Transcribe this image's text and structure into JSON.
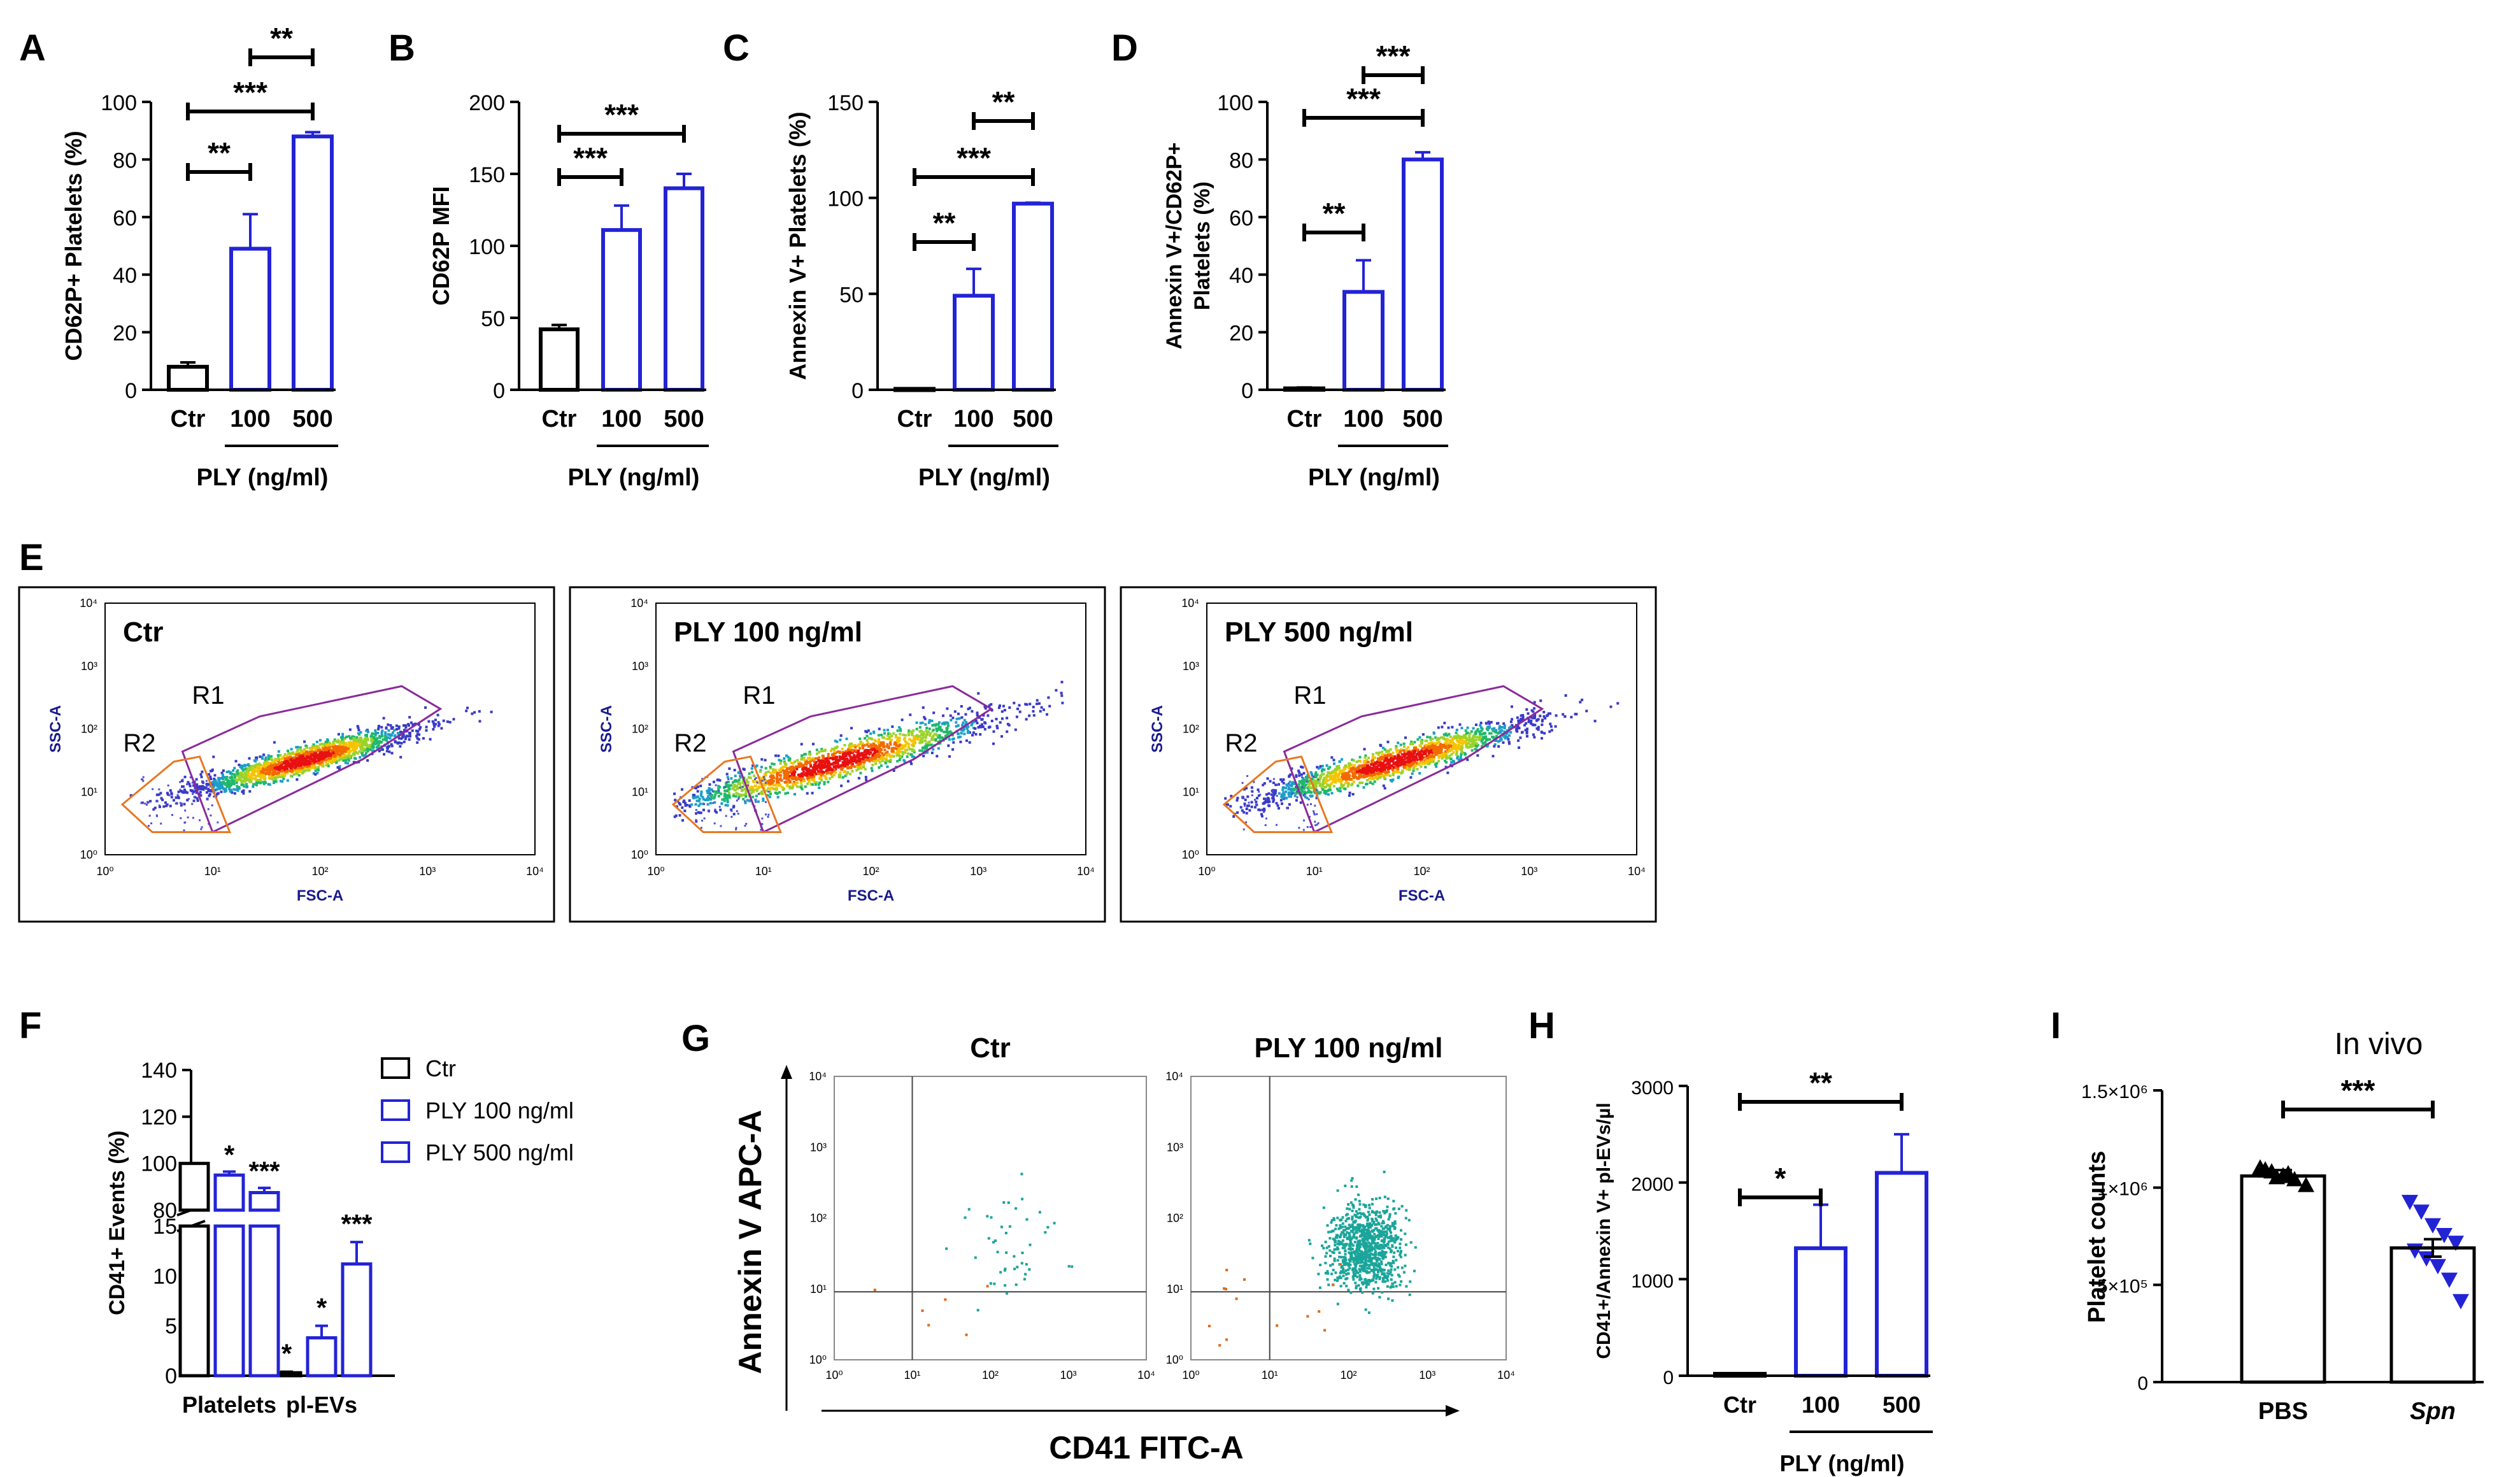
{
  "figure": {
    "colors": {
      "black": "#000000",
      "blue": "#2323d6",
      "purple": "#8a2a9a",
      "orange": "#e87722",
      "teal": "#1aa59a",
      "dot_orange": "#e06a1a"
    },
    "panel_letters": [
      "A",
      "B",
      "C",
      "D",
      "E",
      "F",
      "G",
      "H",
      "I"
    ]
  },
  "chart_data": [
    {
      "id": "A",
      "type": "bar",
      "categories": [
        "Ctr",
        "100",
        "500"
      ],
      "values": [
        8,
        49,
        88
      ],
      "errors": [
        1.5,
        12,
        1.5
      ],
      "ylabel": "CD62P+ Platelets (%)",
      "xgroup_label": "PLY (ng/ml)",
      "ylim": [
        0,
        100
      ],
      "yticks": [
        "0",
        "20",
        "40",
        "60",
        "80",
        "100"
      ],
      "sig": [
        {
          "from": 0,
          "to": 1,
          "label": "**"
        },
        {
          "from": 0,
          "to": 2,
          "label": "***"
        },
        {
          "from": 1,
          "to": 2,
          "label": "**"
        }
      ]
    },
    {
      "id": "B",
      "type": "bar",
      "categories": [
        "Ctr",
        "100",
        "500"
      ],
      "values": [
        42,
        111,
        140
      ],
      "errors": [
        3,
        17,
        10
      ],
      "ylabel": "CD62P MFI",
      "xgroup_label": "PLY (ng/ml)",
      "ylim": [
        0,
        200
      ],
      "yticks": [
        "0",
        "50",
        "100",
        "150",
        "200"
      ],
      "sig": [
        {
          "from": 0,
          "to": 1,
          "label": "***"
        },
        {
          "from": 0,
          "to": 2,
          "label": "***"
        }
      ]
    },
    {
      "id": "C",
      "type": "bar",
      "categories": [
        "Ctr",
        "100",
        "500"
      ],
      "values": [
        0.5,
        49,
        97
      ],
      "errors": [
        0.3,
        14,
        0.5
      ],
      "ylabel": "Annexin V+ Platelets (%)",
      "xgroup_label": "PLY (ng/ml)",
      "ylim": [
        0,
        150
      ],
      "yticks": [
        "0",
        "50",
        "100",
        "150"
      ],
      "sig": [
        {
          "from": 0,
          "to": 1,
          "label": "**"
        },
        {
          "from": 0,
          "to": 2,
          "label": "***"
        },
        {
          "from": 1,
          "to": 2,
          "label": "**"
        }
      ]
    },
    {
      "id": "D",
      "type": "bar",
      "categories": [
        "Ctr",
        "100",
        "500"
      ],
      "values": [
        0.5,
        34,
        80
      ],
      "errors": [
        0.3,
        11,
        2.5
      ],
      "ylabel": "Annexin V+/CD62P+ Platelets (%)",
      "ylabel_lines": [
        "Annexin V+/CD62P+",
        "Platelets (%)"
      ],
      "xgroup_label": "PLY (ng/ml)",
      "ylim": [
        0,
        100
      ],
      "yticks": [
        "0",
        "20",
        "40",
        "60",
        "80",
        "100"
      ],
      "sig": [
        {
          "from": 0,
          "to": 1,
          "label": "**"
        },
        {
          "from": 0,
          "to": 2,
          "label": "***"
        },
        {
          "from": 1,
          "to": 2,
          "label": "***"
        }
      ]
    },
    {
      "id": "E",
      "type": "scatter",
      "panels": [
        {
          "title": "Ctr",
          "xlabel": "FSC-A",
          "ylabel": "SSC-A",
          "gates": [
            "R1",
            "R2"
          ],
          "density_shift": 0
        },
        {
          "title": "PLY 100 ng/ml",
          "xlabel": "FSC-A",
          "ylabel": "SSC-A",
          "gates": [
            "R1",
            "R2"
          ],
          "density_shift": 1
        },
        {
          "title": "PLY 500 ng/ml",
          "xlabel": "FSC-A",
          "ylabel": "SSC-A",
          "gates": [
            "R1",
            "R2"
          ],
          "density_shift": 0.5
        }
      ],
      "ticks": [
        "10⁰",
        "10¹",
        "10²",
        "10³",
        "10⁴"
      ]
    },
    {
      "id": "F",
      "type": "bar",
      "ylabel": "CD41+ Events (%)",
      "groups": [
        "Platelets",
        "pl-EVs"
      ],
      "series": [
        {
          "name": "Ctr",
          "values": [
            100,
            0.3
          ],
          "errors": [
            0,
            0.1
          ]
        },
        {
          "name": "PLY 100 ng/ml",
          "values": [
            95,
            3.8
          ],
          "errors": [
            1.5,
            1.2
          ]
        },
        {
          "name": "PLY 500 ng/ml",
          "values": [
            87.5,
            11.2
          ],
          "errors": [
            2,
            2.2
          ]
        }
      ],
      "sig": [
        [
          "",
          "*"
        ],
        [
          "*",
          "*"
        ],
        [
          "***",
          "***"
        ]
      ],
      "upper_ticks": [
        "80",
        "100",
        "120",
        "140"
      ],
      "lower_ticks": [
        "0",
        "5",
        "10",
        "15"
      ]
    },
    {
      "id": "G",
      "type": "scatter",
      "panels": [
        {
          "title": "Ctr"
        },
        {
          "title": "PLY 100 ng/ml"
        }
      ],
      "xlabel": "CD41 FITC-A",
      "ylabel": "Annexin V APC-A",
      "ticks": [
        "10⁰",
        "10¹",
        "10²",
        "10³",
        "10⁴"
      ]
    },
    {
      "id": "H",
      "type": "bar",
      "categories": [
        "Ctr",
        "100",
        "500"
      ],
      "values": [
        20,
        1320,
        2100
      ],
      "errors": [
        5,
        450,
        400
      ],
      "ylabel": "CD41+/Annexin V+  pl-EVs/µl",
      "xgroup_label": "PLY (ng/ml)",
      "ylim": [
        0,
        3000
      ],
      "yticks": [
        "0",
        "1000",
        "2000",
        "3000"
      ],
      "sig": [
        {
          "from": 0,
          "to": 1,
          "label": "*"
        },
        {
          "from": 0,
          "to": 2,
          "label": "**"
        }
      ]
    },
    {
      "id": "I",
      "type": "bar",
      "title": "In vivo",
      "categories": [
        "PBS",
        "Spn"
      ],
      "values": [
        1060000,
        690000
      ],
      "errors": [
        30000,
        45000
      ],
      "ylabel": "Platelet counts",
      "ylim": [
        0,
        1500000
      ],
      "yticks": [
        "0",
        "5×10⁵",
        "1×10⁶",
        "1.5×10⁶"
      ],
      "points": [
        [
          1100000,
          1080000,
          1060000,
          1040000,
          1010000,
          1090000,
          1050000,
          1070000
        ],
        [
          930000,
          880000,
          810000,
          760000,
          720000,
          680000,
          640000,
          600000,
          530000,
          420000
        ]
      ],
      "sig": [
        {
          "from": 0,
          "to": 1,
          "label": "***"
        }
      ]
    }
  ]
}
